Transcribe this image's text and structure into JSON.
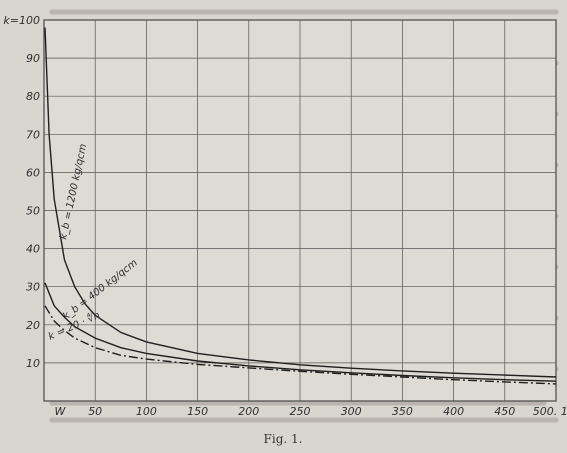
{
  "figure": {
    "caption": "Fig. 1."
  },
  "chart_data": {
    "type": "line",
    "x_axis": {
      "name": "W",
      "range": [
        0,
        500
      ],
      "ticks": [
        0,
        50,
        100,
        150,
        200,
        250,
        300,
        350,
        400,
        450,
        500
      ],
      "tick_labels": [
        "W",
        "50",
        "100",
        "150",
        "200",
        "250",
        "300",
        "350",
        "400",
        "450",
        "500. 10⁶"
      ]
    },
    "y_axis": {
      "name": "k",
      "range": [
        0,
        100
      ],
      "ticks": [
        0,
        10,
        20,
        30,
        40,
        50,
        60,
        70,
        80,
        90,
        100
      ],
      "tick_labels": [
        "",
        "10",
        "20",
        "30",
        "40",
        "50",
        "60",
        "70",
        "80",
        "90",
        "k=100"
      ]
    },
    "grid": true,
    "series": [
      {
        "name": "k_b = 1200 kg/qcm",
        "style": "solid",
        "x": [
          1,
          5,
          10,
          20,
          30,
          40,
          50,
          75,
          100,
          150,
          200,
          250,
          300,
          350,
          400,
          450,
          500
        ],
        "y": [
          98,
          70,
          53,
          37,
          30,
          25.5,
          22.5,
          18,
          15.5,
          12.5,
          10.8,
          9.5,
          8.6,
          7.9,
          7.3,
          6.8,
          6.3
        ]
      },
      {
        "name": "k_b = 400 kg/qcm",
        "style": "solid",
        "x": [
          1,
          10,
          20,
          30,
          50,
          75,
          100,
          150,
          200,
          250,
          300,
          350,
          400,
          450,
          500
        ],
        "y": [
          31,
          25,
          22,
          19.5,
          16.5,
          14,
          12.5,
          10.5,
          9.2,
          8.2,
          7.4,
          6.7,
          6.1,
          5.6,
          5.2
        ]
      },
      {
        "name": "k = 20 · ∜n",
        "style": "dash-dot",
        "x": [
          1,
          10,
          20,
          30,
          50,
          75,
          100,
          150,
          200,
          250,
          300,
          350,
          400,
          450,
          500
        ],
        "y": [
          25,
          21,
          18.5,
          16.5,
          14,
          12,
          11,
          9.6,
          8.7,
          7.8,
          7.0,
          6.3,
          5.6,
          5.0,
          4.5
        ]
      }
    ]
  }
}
